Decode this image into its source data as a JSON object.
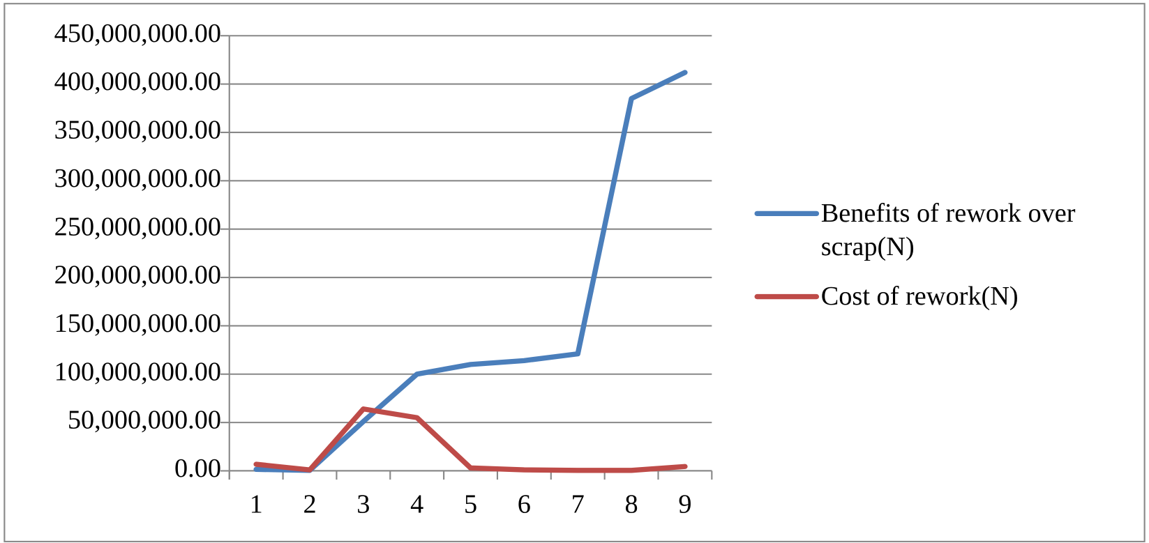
{
  "chart_data": {
    "type": "line",
    "categories": [
      "1",
      "2",
      "3",
      "4",
      "5",
      "6",
      "7",
      "8",
      "9"
    ],
    "series": [
      {
        "name": "Benefits of rework over scrap(N)",
        "color": "#4a7ebb",
        "values": [
          1500000,
          500000,
          51000000,
          100000000,
          110000000,
          114000000,
          121000000,
          385000000,
          412000000
        ]
      },
      {
        "name": "Cost of rework(N)",
        "color": "#be4b48",
        "values": [
          6800000,
          1000000,
          64000000,
          55000000,
          3000000,
          1000000,
          500000,
          500000,
          4500000
        ]
      }
    ],
    "ylim": [
      0,
      450000000
    ],
    "yticks": [
      {
        "value": 0,
        "label": "0.00"
      },
      {
        "value": 50000000,
        "label": "50,000,000.00"
      },
      {
        "value": 100000000,
        "label": "100,000,000.00"
      },
      {
        "value": 150000000,
        "label": "150,000,000.00"
      },
      {
        "value": 200000000,
        "label": "200,000,000.00"
      },
      {
        "value": 250000000,
        "label": "250,000,000.00"
      },
      {
        "value": 300000000,
        "label": "300,000,000.00"
      },
      {
        "value": 350000000,
        "label": "350,000,000.00"
      },
      {
        "value": 400000000,
        "label": "400,000,000.00"
      },
      {
        "value": 450000000,
        "label": "450,000,000.00"
      }
    ],
    "grid": true,
    "legend": "right"
  }
}
